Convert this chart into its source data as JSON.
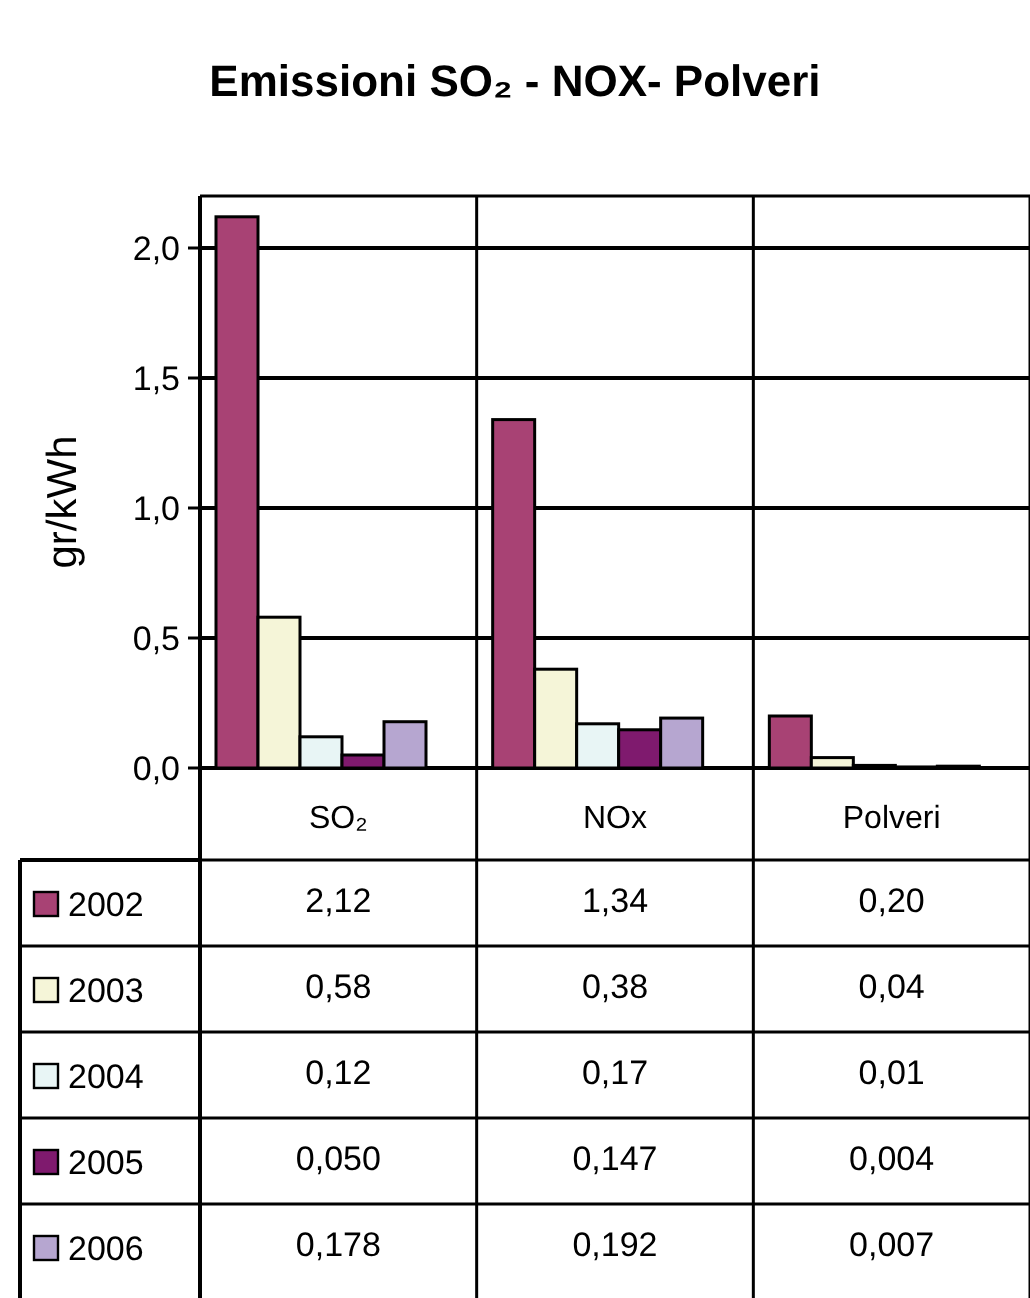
{
  "chart_data": {
    "type": "bar",
    "title": "Emissioni  SO₂ - NOX- Polveri",
    "ylabel": "gr/kWh",
    "categories": [
      "SO₂",
      "NOx",
      "Polveri"
    ],
    "series": [
      {
        "name": "2002",
        "color": "#a84274",
        "values": [
          2.12,
          1.34,
          0.2
        ],
        "value_labels": [
          "2,12",
          "1,34",
          "0,20"
        ]
      },
      {
        "name": "2003",
        "color": "#f5f5d8",
        "values": [
          0.58,
          0.38,
          0.04
        ],
        "value_labels": [
          "0,58",
          "0,38",
          "0,04"
        ]
      },
      {
        "name": "2004",
        "color": "#e8f5f5",
        "values": [
          0.12,
          0.17,
          0.01
        ],
        "value_labels": [
          "0,12",
          "0,17",
          "0,01"
        ]
      },
      {
        "name": "2005",
        "color": "#7f1a6e",
        "values": [
          0.05,
          0.147,
          0.004
        ],
        "value_labels": [
          "0,050",
          "0,147",
          "0,004"
        ]
      },
      {
        "name": "2006",
        "color": "#b6a6d0",
        "values": [
          0.178,
          0.192,
          0.007
        ],
        "value_labels": [
          "0,178",
          "0,192",
          "0,007"
        ]
      }
    ],
    "ylim": [
      0,
      2.2
    ],
    "yticks": [
      {
        "value": 0,
        "label": "0,0"
      },
      {
        "value": 0.5,
        "label": "0,5"
      },
      {
        "value": 1,
        "label": "1,0"
      },
      {
        "value": 1.5,
        "label": "1,5"
      },
      {
        "value": 2,
        "label": "2,0"
      }
    ],
    "grid": "y",
    "legend": "bottom"
  }
}
